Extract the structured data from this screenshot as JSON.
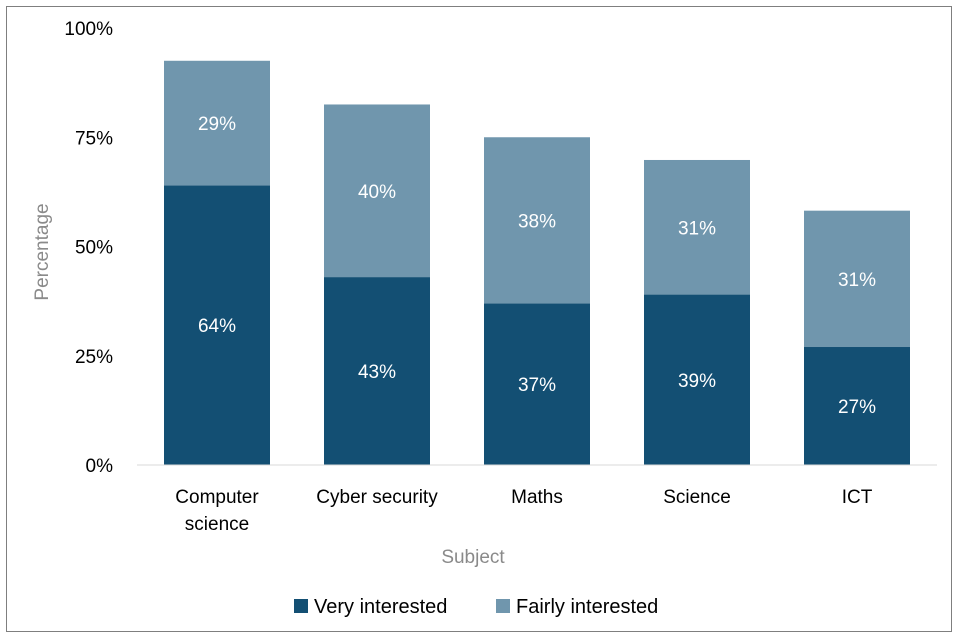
{
  "chart_data": {
    "type": "bar",
    "stacked": true,
    "categories": [
      "Computer science",
      "Cyber security",
      "Maths",
      "Science",
      "ICT"
    ],
    "category_lines": [
      [
        "Computer",
        "science"
      ],
      [
        "Cyber security"
      ],
      [
        "Maths"
      ],
      [
        "Science"
      ],
      [
        "ICT"
      ]
    ],
    "series": [
      {
        "name": "Very interested",
        "values": [
          64,
          43,
          37,
          39,
          27
        ],
        "labels": [
          "64%",
          "43%",
          "37%",
          "39%",
          "27%"
        ],
        "color": "#134f73"
      },
      {
        "name": "Fairly interested",
        "values": [
          29,
          40,
          38,
          31,
          31
        ],
        "labels": [
          "29%",
          "40%",
          "38%",
          "31%",
          "31%"
        ],
        "color": "#7096ad"
      }
    ],
    "bar_tops": [
      92.5,
      82.5,
      75,
      69.8,
      58.2
    ],
    "ylim": [
      0,
      100
    ],
    "yticks": [
      0,
      25,
      50,
      75,
      100
    ],
    "ytick_labels": [
      "0%",
      "25%",
      "50%",
      "75%",
      "100%"
    ],
    "xlabel": "Subject",
    "ylabel": "Percentage",
    "grid": false,
    "legend_position": "bottom"
  }
}
